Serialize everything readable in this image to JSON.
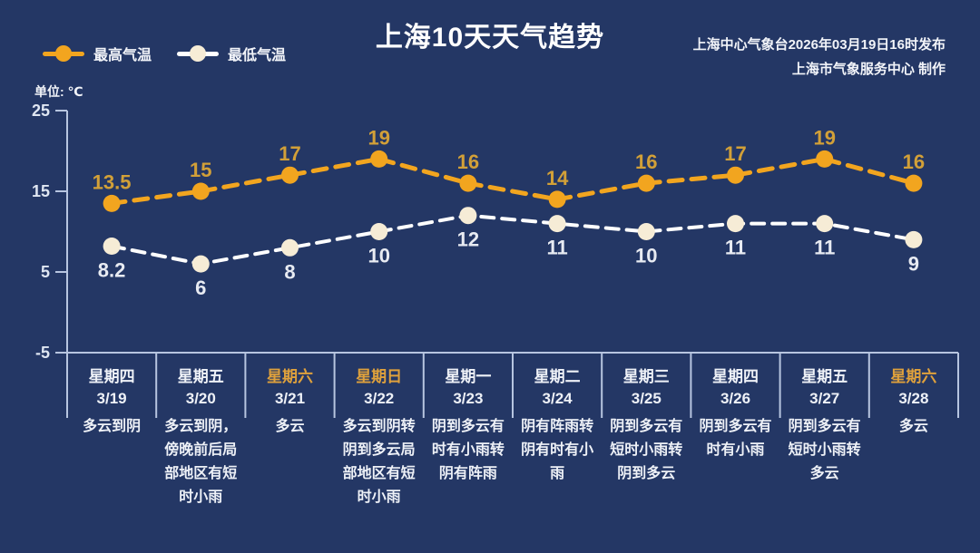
{
  "header": {
    "title": "上海10天天气趋势",
    "issue_line1": "上海中心气象台2026年03月19日16时发布",
    "issue_line2": "上海市气象服务中心  制作"
  },
  "legend": {
    "high_label": "最高气温",
    "low_label": "最低气温"
  },
  "axis": {
    "unit_label": "单位: ℃"
  },
  "colors": {
    "background": "#243765",
    "axis_line": "#b7c5e0",
    "high": "#f2a51f",
    "high_value_text": "#d2a038",
    "low_line": "#ffffff",
    "low_marker": "#f6ecd6",
    "low_value_text": "#e8ebf2",
    "tick_text": "#dfe6f2",
    "weekend_text": "#dfa13c",
    "body_text": "#eef1f7"
  },
  "chart_data": {
    "type": "line",
    "title": "上海10天天气趋势",
    "ylabel": "℃",
    "ylim": [
      -5,
      25
    ],
    "yticks": [
      25,
      15,
      5,
      -5
    ],
    "grid": false,
    "legend_position": "top-left",
    "line_style": "dashed",
    "categories": [
      "3/19",
      "3/20",
      "3/21",
      "3/22",
      "3/23",
      "3/24",
      "3/25",
      "3/26",
      "3/27",
      "3/28"
    ],
    "weekdays": [
      "星期四",
      "星期五",
      "星期六",
      "星期日",
      "星期一",
      "星期二",
      "星期三",
      "星期四",
      "星期五",
      "星期六"
    ],
    "weekend_flags": [
      false,
      false,
      true,
      true,
      false,
      false,
      false,
      false,
      false,
      true
    ],
    "series": [
      {
        "name": "最高气温",
        "values": [
          13.5,
          15,
          17,
          19,
          16,
          14,
          16,
          17,
          19,
          16
        ]
      },
      {
        "name": "最低气温",
        "values": [
          8.2,
          6,
          8,
          10,
          12,
          11,
          10,
          11,
          11,
          9
        ]
      }
    ],
    "descriptions": [
      "多云到阴",
      "多云到阴，\n傍晚前后局\n部地区有短\n时小雨",
      "多云",
      "多云到阴转\n阴到多云局\n部地区有短\n时小雨",
      "阴到多云有\n时有小雨转\n阴有阵雨",
      "阴有阵雨转\n阴有时有小\n雨",
      "阴到多云有\n短时小雨转\n阴到多云",
      "阴到多云有\n时有小雨",
      "阴到多云有\n短时小雨转\n多云",
      "多云"
    ]
  }
}
